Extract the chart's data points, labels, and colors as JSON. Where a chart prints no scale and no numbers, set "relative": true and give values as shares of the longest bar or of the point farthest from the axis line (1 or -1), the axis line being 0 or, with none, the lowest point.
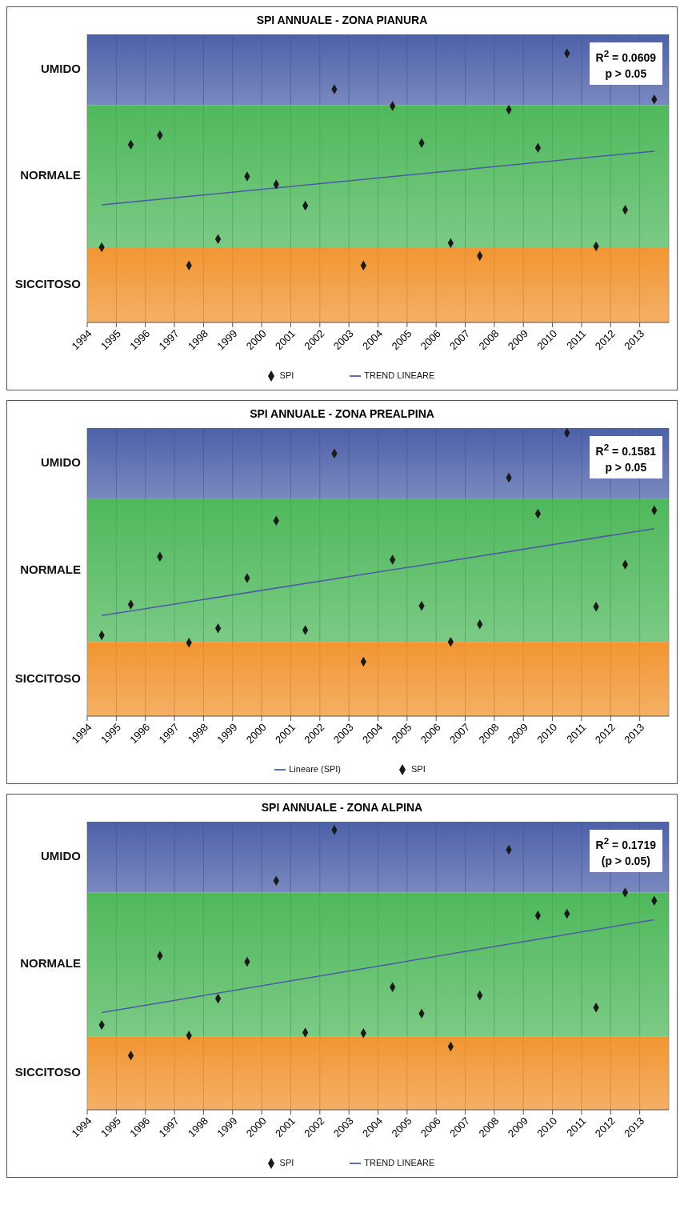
{
  "chart_data": [
    {
      "type": "scatter",
      "title": "SPI ANNUALE - ZONA PIANURA",
      "relative": true,
      "xlim": [
        1994,
        2014
      ],
      "xticks": [
        1994,
        1995,
        1996,
        1997,
        1998,
        1999,
        2000,
        2001,
        2002,
        2003,
        2004,
        2005,
        2006,
        2007,
        2008,
        2009,
        2010,
        2011,
        2012,
        2013
      ],
      "grid": "x",
      "legend": "bottom",
      "series": [
        {
          "name": "SPI",
          "marker": "diamond",
          "color": "#1a1a1a",
          "x": [
            1994.5,
            1995.5,
            1996.5,
            1997.5,
            1998.5,
            1999.5,
            2000.5,
            2001.5,
            2002.5,
            2003.5,
            2004.5,
            2005.5,
            2006.5,
            2007.5,
            2008.5,
            2009.5,
            2010.5,
            2011.5,
            2012.5,
            2013.5
          ],
          "values": [
            0.28,
            0.661,
            0.696,
            0.212,
            0.31,
            0.543,
            0.513,
            0.434,
            0.867,
            0.212,
            0.805,
            0.667,
            0.295,
            0.248,
            0.791,
            0.649,
            1,
            0.283,
            0.419,
            0.829
          ]
        },
        {
          "name": "TREND LINEARE",
          "type": "line",
          "color": "#4a5aa8",
          "line_style": "solid",
          "x": [
            1994.5,
            2013.5
          ],
          "values": [
            0.437,
            0.637
          ]
        }
      ],
      "bands": [
        {
          "axis": "y",
          "from": 0.808,
          "to": 1.071,
          "label": "UMIDO",
          "color": "#3a50a0"
        },
        {
          "axis": "y",
          "from": 0.28,
          "to": 0.808,
          "label": "NORMALE",
          "color": "#3cb14a"
        },
        {
          "axis": "y",
          "from": 0,
          "to": 0.28,
          "label": "SICCITOSO",
          "color": "#f08a1c"
        }
      ],
      "annotations": [
        "R$^{2}$ = 0.0609",
        "p > 0.05"
      ]
    },
    {
      "type": "scatter",
      "title": "SPI ANNUALE - ZONA PREALPINA",
      "relative": true,
      "xlim": [
        1994,
        2014
      ],
      "xticks": [
        1994,
        1995,
        1996,
        1997,
        1998,
        1999,
        2000,
        2001,
        2002,
        2003,
        2004,
        2005,
        2006,
        2007,
        2008,
        2009,
        2010,
        2011,
        2012,
        2013
      ],
      "grid": "x",
      "legend": "bottom",
      "series": [
        {
          "name": "SPI",
          "marker": "diamond",
          "color": "#1a1a1a",
          "x": [
            1994.5,
            1995.5,
            1996.5,
            1997.5,
            1998.5,
            1999.5,
            2000.5,
            2001.5,
            2002.5,
            2003.5,
            2004.5,
            2005.5,
            2006.5,
            2007.5,
            2008.5,
            2009.5,
            2010.5,
            2011.5,
            2012.5,
            2013.5
          ],
          "values": [
            0.285,
            0.394,
            0.563,
            0.259,
            0.31,
            0.487,
            0.69,
            0.304,
            0.927,
            0.192,
            0.552,
            0.389,
            0.262,
            0.324,
            0.842,
            0.715,
            1,
            0.386,
            0.535,
            0.727
          ]
        },
        {
          "name": "Lineare (SPI)",
          "type": "line",
          "color": "#4a5aa8",
          "line_style": "solid",
          "x": [
            1994.5,
            2013.5
          ],
          "values": [
            0.355,
            0.662
          ]
        }
      ],
      "bands": [
        {
          "axis": "y",
          "from": 0.766,
          "to": 1.017,
          "label": "UMIDO",
          "color": "#3a50a0"
        },
        {
          "axis": "y",
          "from": 0.262,
          "to": 0.766,
          "label": "NORMALE",
          "color": "#3cb14a"
        },
        {
          "axis": "y",
          "from": 0,
          "to": 0.262,
          "label": "SICCITOSO",
          "color": "#f08a1c"
        }
      ],
      "annotations": [
        "R$^{2}$ = 0.1581",
        "p > 0.05"
      ]
    },
    {
      "type": "scatter",
      "title": "SPI ANNUALE - ZONA ALPINA",
      "relative": true,
      "xlim": [
        1994,
        2014
      ],
      "xticks": [
        1994,
        1995,
        1996,
        1997,
        1998,
        1999,
        2000,
        2001,
        2002,
        2003,
        2004,
        2005,
        2006,
        2007,
        2008,
        2009,
        2010,
        2011,
        2012,
        2013
      ],
      "grid": "x",
      "legend": "bottom",
      "series": [
        {
          "name": "SPI",
          "marker": "diamond",
          "color": "#1a1a1a",
          "x": [
            1994.5,
            1995.5,
            1996.5,
            1997.5,
            1998.5,
            1999.5,
            2000.5,
            2001.5,
            2002.5,
            2003.5,
            2004.5,
            2005.5,
            2006.5,
            2007.5,
            2008.5,
            2009.5,
            2010.5,
            2011.5,
            2012.5,
            2013.5
          ],
          "values": [
            0.303,
            0.194,
            0.55,
            0.265,
            0.397,
            0.529,
            0.818,
            0.276,
            1,
            0.274,
            0.438,
            0.344,
            0.226,
            0.409,
            0.929,
            0.694,
            0.7,
            0.365,
            0.776,
            0.747
          ]
        },
        {
          "name": "TREND LINEARE",
          "type": "line",
          "color": "#4a5aa8",
          "line_style": "solid",
          "x": [
            1994.5,
            2013.5
          ],
          "values": [
            0.347,
            0.679
          ]
        }
      ],
      "bands": [
        {
          "axis": "y",
          "from": 0.776,
          "to": 1.029,
          "label": "UMIDO",
          "color": "#3a50a0"
        },
        {
          "axis": "y",
          "from": 0.262,
          "to": 0.776,
          "label": "NORMALE",
          "color": "#3cb14a"
        },
        {
          "axis": "y",
          "from": 0,
          "to": 0.262,
          "label": "SICCITOSO",
          "color": "#f08a1c"
        }
      ],
      "annotations": [
        "R$^{2}$ = 0.1719",
        "(p > 0.05)"
      ]
    }
  ]
}
